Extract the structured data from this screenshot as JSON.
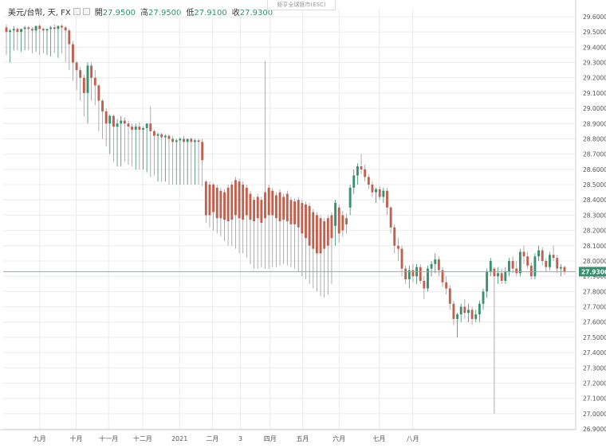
{
  "legend": {
    "symbol": "美元/台幣, 天, FX",
    "open_label": "開",
    "open": "27.9500",
    "high_label": "高",
    "high": "27.9500",
    "low_label": "低",
    "low": "27.9100",
    "close_label": "收",
    "close": "27.9300"
  },
  "watermark": "鉅亨全球匯市(ESC)",
  "last_price_label": "27.9300",
  "colors": {
    "up": "#3a8f6e",
    "down": "#c0604d",
    "grid": "#ececec",
    "axis_text": "#555555",
    "price_line": "#7fb3b5",
    "price_tag": "#3a8f6e"
  },
  "chart_data": {
    "type": "candlestick",
    "ylim": [
      26.9,
      29.6
    ],
    "yticks": [
      "29.6000",
      "29.5000",
      "29.4000",
      "29.3000",
      "29.2000",
      "29.1000",
      "29.0000",
      "28.9000",
      "28.8000",
      "28.7000",
      "28.6000",
      "28.5000",
      "28.4000",
      "28.3000",
      "28.2000",
      "28.1000",
      "28.0000",
      "27.9000",
      "27.8000",
      "27.7000",
      "27.6000",
      "27.5000",
      "27.4000",
      "27.3000",
      "27.2000",
      "27.1000",
      "27.0000",
      "26.9000"
    ],
    "xlabels": [
      {
        "label": "九月",
        "pos": 0.091
      },
      {
        "label": "十月",
        "pos": 0.182
      },
      {
        "label": "十一月",
        "pos": 0.263
      },
      {
        "label": "十二月",
        "pos": 0.348
      },
      {
        "label": "2021",
        "pos": 0.44
      },
      {
        "label": "二月",
        "pos": 0.522
      },
      {
        "label": "3",
        "pos": 0.592
      },
      {
        "label": "四月",
        "pos": 0.666
      },
      {
        "label": "五月",
        "pos": 0.747
      },
      {
        "label": "六月",
        "pos": 0.838
      },
      {
        "label": "七月",
        "pos": 0.938
      },
      {
        "label": "八月",
        "pos": 1.022
      }
    ],
    "last_close": 27.93,
    "candles": [
      {
        "o": 29.53,
        "h": 29.55,
        "l": 29.35,
        "c": 29.5
      },
      {
        "o": 29.5,
        "h": 29.52,
        "l": 29.3,
        "c": 29.51
      },
      {
        "o": 29.51,
        "h": 29.54,
        "l": 29.38,
        "c": 29.52
      },
      {
        "o": 29.52,
        "h": 29.53,
        "l": 29.38,
        "c": 29.5
      },
      {
        "o": 29.5,
        "h": 29.52,
        "l": 29.37,
        "c": 29.52
      },
      {
        "o": 29.52,
        "h": 29.54,
        "l": 29.38,
        "c": 29.53
      },
      {
        "o": 29.53,
        "h": 29.54,
        "l": 29.38,
        "c": 29.52
      },
      {
        "o": 29.52,
        "h": 29.53,
        "l": 29.36,
        "c": 29.51
      },
      {
        "o": 29.51,
        "h": 29.54,
        "l": 29.37,
        "c": 29.54
      },
      {
        "o": 29.54,
        "h": 29.55,
        "l": 29.35,
        "c": 29.52
      },
      {
        "o": 29.52,
        "h": 29.53,
        "l": 29.36,
        "c": 29.51
      },
      {
        "o": 29.51,
        "h": 29.52,
        "l": 29.35,
        "c": 29.52
      },
      {
        "o": 29.52,
        "h": 29.54,
        "l": 29.34,
        "c": 29.53
      },
      {
        "o": 29.53,
        "h": 29.55,
        "l": 29.36,
        "c": 29.52
      },
      {
        "o": 29.52,
        "h": 29.54,
        "l": 29.33,
        "c": 29.54
      },
      {
        "o": 29.54,
        "h": 29.55,
        "l": 29.36,
        "c": 29.53
      },
      {
        "o": 29.53,
        "h": 29.54,
        "l": 29.3,
        "c": 29.51
      },
      {
        "o": 29.51,
        "h": 29.52,
        "l": 29.25,
        "c": 29.42
      },
      {
        "o": 29.42,
        "h": 29.44,
        "l": 29.18,
        "c": 29.3
      },
      {
        "o": 29.3,
        "h": 29.31,
        "l": 29.12,
        "c": 29.25
      },
      {
        "o": 29.25,
        "h": 29.27,
        "l": 29.05,
        "c": 29.2
      },
      {
        "o": 29.2,
        "h": 29.22,
        "l": 28.95,
        "c": 29.1
      },
      {
        "o": 29.1,
        "h": 29.3,
        "l": 28.9,
        "c": 29.28
      },
      {
        "o": 29.28,
        "h": 29.3,
        "l": 29.05,
        "c": 29.2
      },
      {
        "o": 29.2,
        "h": 29.25,
        "l": 29.02,
        "c": 29.15
      },
      {
        "o": 29.15,
        "h": 29.16,
        "l": 28.85,
        "c": 29.05
      },
      {
        "o": 29.05,
        "h": 29.06,
        "l": 28.8,
        "c": 28.98
      },
      {
        "o": 28.98,
        "h": 29.0,
        "l": 28.75,
        "c": 28.9
      },
      {
        "o": 28.9,
        "h": 28.96,
        "l": 28.7,
        "c": 28.95
      },
      {
        "o": 28.95,
        "h": 28.96,
        "l": 28.65,
        "c": 28.88
      },
      {
        "o": 28.88,
        "h": 28.93,
        "l": 28.62,
        "c": 28.9
      },
      {
        "o": 28.9,
        "h": 28.95,
        "l": 28.62,
        "c": 28.92
      },
      {
        "o": 28.92,
        "h": 28.94,
        "l": 28.65,
        "c": 28.9
      },
      {
        "o": 28.9,
        "h": 28.92,
        "l": 28.63,
        "c": 28.88
      },
      {
        "o": 28.88,
        "h": 28.9,
        "l": 28.62,
        "c": 28.86
      },
      {
        "o": 28.86,
        "h": 28.9,
        "l": 28.6,
        "c": 28.88
      },
      {
        "o": 28.88,
        "h": 28.91,
        "l": 28.6,
        "c": 28.86
      },
      {
        "o": 28.86,
        "h": 28.88,
        "l": 28.6,
        "c": 28.87
      },
      {
        "o": 28.87,
        "h": 28.9,
        "l": 28.58,
        "c": 28.9
      },
      {
        "o": 28.9,
        "h": 29.01,
        "l": 28.55,
        "c": 28.85
      },
      {
        "o": 28.85,
        "h": 28.86,
        "l": 28.56,
        "c": 28.82
      },
      {
        "o": 28.82,
        "h": 28.84,
        "l": 28.52,
        "c": 28.83
      },
      {
        "o": 28.83,
        "h": 28.84,
        "l": 28.52,
        "c": 28.81
      },
      {
        "o": 28.81,
        "h": 28.83,
        "l": 28.52,
        "c": 28.82
      },
      {
        "o": 28.82,
        "h": 28.83,
        "l": 28.5,
        "c": 28.8
      },
      {
        "o": 28.8,
        "h": 28.82,
        "l": 28.5,
        "c": 28.78
      },
      {
        "o": 28.78,
        "h": 28.8,
        "l": 28.5,
        "c": 28.79
      },
      {
        "o": 28.79,
        "h": 28.81,
        "l": 28.5,
        "c": 28.8
      },
      {
        "o": 28.8,
        "h": 28.82,
        "l": 28.5,
        "c": 28.78
      },
      {
        "o": 28.78,
        "h": 28.8,
        "l": 28.5,
        "c": 28.8
      },
      {
        "o": 28.8,
        "h": 28.81,
        "l": 28.5,
        "c": 28.78
      },
      {
        "o": 28.78,
        "h": 28.8,
        "l": 28.5,
        "c": 28.79
      },
      {
        "o": 28.79,
        "h": 28.8,
        "l": 28.5,
        "c": 28.78
      },
      {
        "o": 28.78,
        "h": 28.8,
        "l": 28.49,
        "c": 28.66
      },
      {
        "o": 28.52,
        "h": 28.53,
        "l": 28.25,
        "c": 28.3
      },
      {
        "o": 28.5,
        "h": 28.52,
        "l": 28.22,
        "c": 28.3
      },
      {
        "o": 28.5,
        "h": 28.51,
        "l": 28.2,
        "c": 28.32
      },
      {
        "o": 28.48,
        "h": 28.5,
        "l": 28.18,
        "c": 28.28
      },
      {
        "o": 28.46,
        "h": 28.48,
        "l": 28.16,
        "c": 28.28
      },
      {
        "o": 28.45,
        "h": 28.47,
        "l": 28.13,
        "c": 28.27
      },
      {
        "o": 28.48,
        "h": 28.5,
        "l": 28.1,
        "c": 28.26
      },
      {
        "o": 28.5,
        "h": 28.52,
        "l": 28.1,
        "c": 28.27
      },
      {
        "o": 28.53,
        "h": 28.55,
        "l": 28.08,
        "c": 28.3
      },
      {
        "o": 28.52,
        "h": 28.54,
        "l": 28.05,
        "c": 28.28
      },
      {
        "o": 28.5,
        "h": 28.52,
        "l": 28.05,
        "c": 28.27
      },
      {
        "o": 28.48,
        "h": 28.5,
        "l": 28.02,
        "c": 28.3
      },
      {
        "o": 28.44,
        "h": 28.46,
        "l": 27.98,
        "c": 28.27
      },
      {
        "o": 28.4,
        "h": 28.42,
        "l": 27.95,
        "c": 28.26
      },
      {
        "o": 28.42,
        "h": 28.44,
        "l": 27.95,
        "c": 28.28
      },
      {
        "o": 28.4,
        "h": 28.42,
        "l": 27.96,
        "c": 28.25
      },
      {
        "o": 28.45,
        "h": 29.31,
        "l": 27.95,
        "c": 28.28
      },
      {
        "o": 28.48,
        "h": 28.5,
        "l": 27.95,
        "c": 28.3
      },
      {
        "o": 28.46,
        "h": 28.48,
        "l": 27.96,
        "c": 28.3
      },
      {
        "o": 28.43,
        "h": 28.45,
        "l": 27.96,
        "c": 28.28
      },
      {
        "o": 28.45,
        "h": 28.47,
        "l": 27.97,
        "c": 28.26
      },
      {
        "o": 28.42,
        "h": 28.44,
        "l": 27.98,
        "c": 28.27
      },
      {
        "o": 28.44,
        "h": 28.46,
        "l": 27.97,
        "c": 28.26
      },
      {
        "o": 28.4,
        "h": 28.42,
        "l": 27.96,
        "c": 28.24
      },
      {
        "o": 28.39,
        "h": 28.41,
        "l": 27.95,
        "c": 28.24
      },
      {
        "o": 28.4,
        "h": 28.42,
        "l": 27.93,
        "c": 28.22
      },
      {
        "o": 28.38,
        "h": 28.4,
        "l": 27.9,
        "c": 28.18
      },
      {
        "o": 28.37,
        "h": 28.39,
        "l": 27.88,
        "c": 28.15
      },
      {
        "o": 28.36,
        "h": 28.38,
        "l": 27.85,
        "c": 28.1
      },
      {
        "o": 28.32,
        "h": 28.34,
        "l": 27.82,
        "c": 28.08
      },
      {
        "o": 28.3,
        "h": 28.32,
        "l": 27.8,
        "c": 28.05
      },
      {
        "o": 28.28,
        "h": 28.3,
        "l": 27.77,
        "c": 28.05
      },
      {
        "o": 28.26,
        "h": 28.28,
        "l": 27.76,
        "c": 28.08
      },
      {
        "o": 28.28,
        "h": 28.3,
        "l": 27.78,
        "c": 28.1
      },
      {
        "o": 28.3,
        "h": 28.32,
        "l": 27.85,
        "c": 28.15
      },
      {
        "o": 28.23,
        "h": 28.4,
        "l": 28.1,
        "c": 28.38
      },
      {
        "o": 28.35,
        "h": 28.37,
        "l": 28.12,
        "c": 28.18
      },
      {
        "o": 28.3,
        "h": 28.33,
        "l": 28.16,
        "c": 28.2
      },
      {
        "o": 28.28,
        "h": 28.31,
        "l": 28.18,
        "c": 28.24
      },
      {
        "o": 28.35,
        "h": 28.5,
        "l": 28.3,
        "c": 28.48
      },
      {
        "o": 28.48,
        "h": 28.6,
        "l": 28.44,
        "c": 28.56
      },
      {
        "o": 28.56,
        "h": 28.64,
        "l": 28.5,
        "c": 28.62
      },
      {
        "o": 28.62,
        "h": 28.7,
        "l": 28.57,
        "c": 28.6
      },
      {
        "o": 28.6,
        "h": 28.63,
        "l": 28.52,
        "c": 28.55
      },
      {
        "o": 28.55,
        "h": 28.57,
        "l": 28.47,
        "c": 28.5
      },
      {
        "o": 28.5,
        "h": 28.52,
        "l": 28.42,
        "c": 28.45
      },
      {
        "o": 28.45,
        "h": 28.48,
        "l": 28.38,
        "c": 28.47
      },
      {
        "o": 28.47,
        "h": 28.49,
        "l": 28.4,
        "c": 28.42
      },
      {
        "o": 28.42,
        "h": 28.48,
        "l": 28.38,
        "c": 28.46
      },
      {
        "o": 28.46,
        "h": 28.48,
        "l": 28.3,
        "c": 28.35
      },
      {
        "o": 28.35,
        "h": 28.36,
        "l": 28.18,
        "c": 28.22
      },
      {
        "o": 28.22,
        "h": 28.24,
        "l": 28.05,
        "c": 28.1
      },
      {
        "o": 28.1,
        "h": 28.15,
        "l": 28.0,
        "c": 28.08
      },
      {
        "o": 28.08,
        "h": 28.1,
        "l": 27.9,
        "c": 27.95
      },
      {
        "o": 27.95,
        "h": 27.97,
        "l": 27.85,
        "c": 27.88
      },
      {
        "o": 27.88,
        "h": 27.97,
        "l": 27.82,
        "c": 27.94
      },
      {
        "o": 27.94,
        "h": 27.98,
        "l": 27.86,
        "c": 27.9
      },
      {
        "o": 27.9,
        "h": 27.98,
        "l": 27.85,
        "c": 27.96
      },
      {
        "o": 27.96,
        "h": 27.98,
        "l": 27.85,
        "c": 27.87
      },
      {
        "o": 27.87,
        "h": 27.9,
        "l": 27.75,
        "c": 27.82
      },
      {
        "o": 27.82,
        "h": 27.97,
        "l": 27.8,
        "c": 27.95
      },
      {
        "o": 27.95,
        "h": 28.0,
        "l": 27.9,
        "c": 27.98
      },
      {
        "o": 27.98,
        "h": 28.05,
        "l": 27.92,
        "c": 28.01
      },
      {
        "o": 28.01,
        "h": 28.03,
        "l": 27.9,
        "c": 27.94
      },
      {
        "o": 27.94,
        "h": 27.96,
        "l": 27.83,
        "c": 27.86
      },
      {
        "o": 27.86,
        "h": 27.9,
        "l": 27.78,
        "c": 27.82
      },
      {
        "o": 27.82,
        "h": 27.84,
        "l": 27.68,
        "c": 27.72
      },
      {
        "o": 27.72,
        "h": 27.74,
        "l": 27.58,
        "c": 27.62
      },
      {
        "o": 27.62,
        "h": 27.66,
        "l": 27.5,
        "c": 27.65
      },
      {
        "o": 27.65,
        "h": 27.72,
        "l": 27.6,
        "c": 27.7
      },
      {
        "o": 27.7,
        "h": 27.75,
        "l": 27.62,
        "c": 27.66
      },
      {
        "o": 27.66,
        "h": 27.72,
        "l": 27.6,
        "c": 27.68
      },
      {
        "o": 27.68,
        "h": 27.7,
        "l": 27.58,
        "c": 27.62
      },
      {
        "o": 27.62,
        "h": 27.68,
        "l": 27.6,
        "c": 27.65
      },
      {
        "o": 27.65,
        "h": 27.74,
        "l": 27.6,
        "c": 27.72
      },
      {
        "o": 27.72,
        "h": 27.82,
        "l": 27.68,
        "c": 27.8
      },
      {
        "o": 27.8,
        "h": 27.95,
        "l": 27.76,
        "c": 27.93
      },
      {
        "o": 27.93,
        "h": 28.02,
        "l": 27.9,
        "c": 28.0
      },
      {
        "o": 27.95,
        "h": 27.96,
        "l": 27.0,
        "c": 27.9
      },
      {
        "o": 27.9,
        "h": 27.96,
        "l": 27.85,
        "c": 27.92
      },
      {
        "o": 27.92,
        "h": 27.95,
        "l": 27.85,
        "c": 27.87
      },
      {
        "o": 27.87,
        "h": 27.96,
        "l": 27.85,
        "c": 27.93
      },
      {
        "o": 27.93,
        "h": 28.02,
        "l": 27.9,
        "c": 28.0
      },
      {
        "o": 28.0,
        "h": 28.03,
        "l": 27.92,
        "c": 27.95
      },
      {
        "o": 27.95,
        "h": 28.0,
        "l": 27.9,
        "c": 27.92
      },
      {
        "o": 27.92,
        "h": 28.08,
        "l": 27.9,
        "c": 28.06
      },
      {
        "o": 28.06,
        "h": 28.1,
        "l": 27.98,
        "c": 28.03
      },
      {
        "o": 28.03,
        "h": 28.06,
        "l": 27.95,
        "c": 27.97
      },
      {
        "o": 27.97,
        "h": 27.99,
        "l": 27.88,
        "c": 27.9
      },
      {
        "o": 27.9,
        "h": 28.05,
        "l": 27.88,
        "c": 28.03
      },
      {
        "o": 28.03,
        "h": 28.1,
        "l": 28.0,
        "c": 28.07
      },
      {
        "o": 28.07,
        "h": 28.09,
        "l": 27.97,
        "c": 28.0
      },
      {
        "o": 28.0,
        "h": 28.02,
        "l": 27.93,
        "c": 27.96
      },
      {
        "o": 27.96,
        "h": 28.06,
        "l": 27.94,
        "c": 28.04
      },
      {
        "o": 28.04,
        "h": 28.1,
        "l": 28.0,
        "c": 28.02
      },
      {
        "o": 28.02,
        "h": 28.04,
        "l": 27.92,
        "c": 27.95
      },
      {
        "o": 27.95,
        "h": 27.98,
        "l": 27.9,
        "c": 27.96
      },
      {
        "o": 27.96,
        "h": 27.97,
        "l": 27.91,
        "c": 27.93
      }
    ]
  }
}
